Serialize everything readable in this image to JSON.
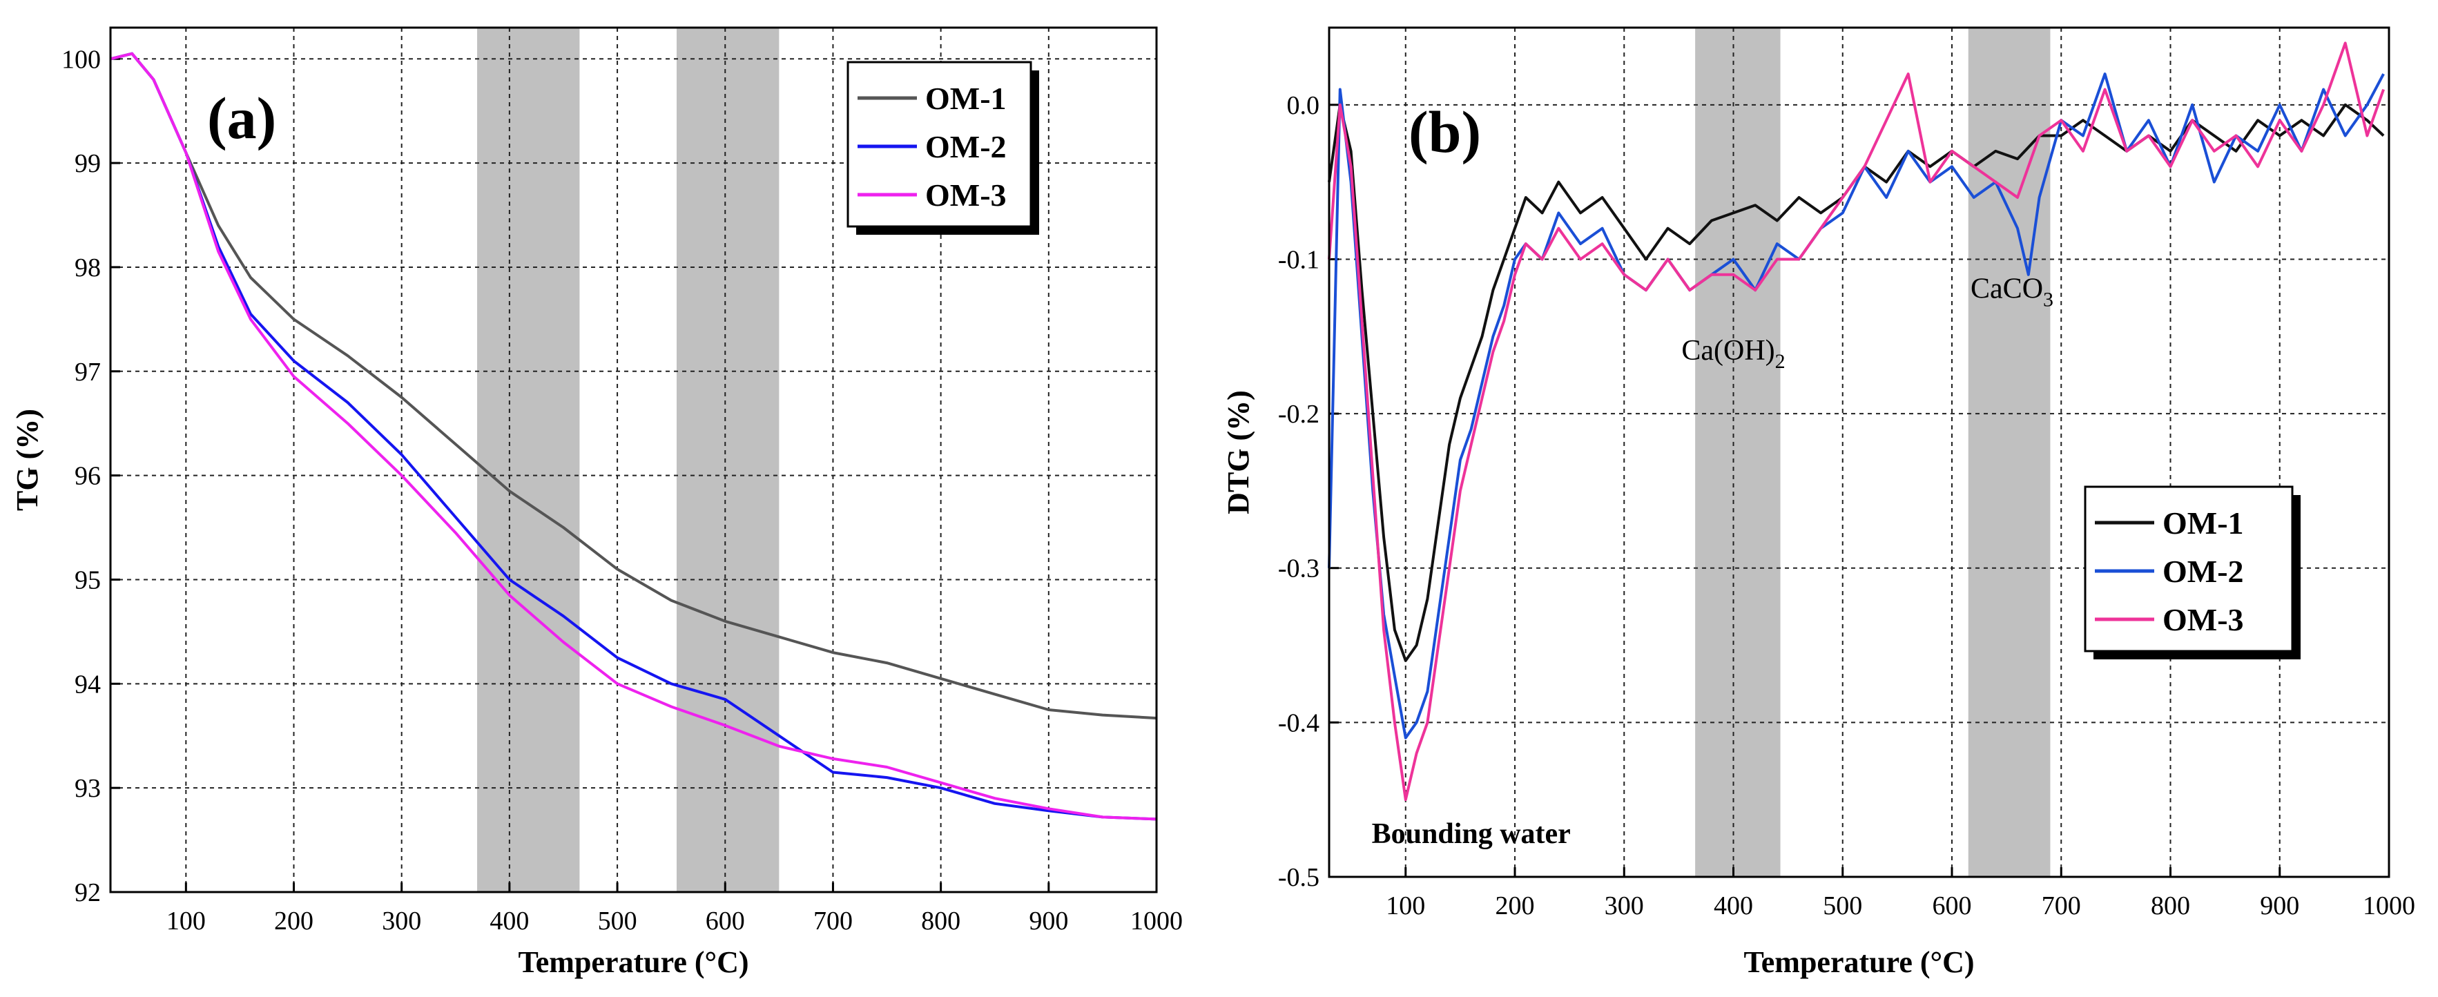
{
  "chart_data": [
    {
      "type": "line",
      "panel_label": "(a)",
      "xlabel": "Temperature (°C)",
      "ylabel": "TG (%)",
      "xlim": [
        30,
        1000
      ],
      "ylim": [
        92,
        100.3
      ],
      "xticks": [
        "100",
        "200",
        "300",
        "400",
        "500",
        "600",
        "700",
        "800",
        "900",
        "1000"
      ],
      "yticks": [
        "92",
        "93",
        "94",
        "95",
        "96",
        "97",
        "98",
        "99",
        "100"
      ],
      "grid": true,
      "shaded_ranges": [
        [
          370,
          465
        ],
        [
          555,
          650
        ]
      ],
      "legend_position": "top-right",
      "series": [
        {
          "name": "OM-1",
          "color": "#555555",
          "points": [
            [
              30,
              100
            ],
            [
              50,
              100.05
            ],
            [
              70,
              99.8
            ],
            [
              100,
              99.1
            ],
            [
              130,
              98.4
            ],
            [
              160,
              97.9
            ],
            [
              200,
              97.5
            ],
            [
              250,
              97.15
            ],
            [
              300,
              96.75
            ],
            [
              350,
              96.3
            ],
            [
              400,
              95.85
            ],
            [
              450,
              95.5
            ],
            [
              500,
              95.1
            ],
            [
              550,
              94.8
            ],
            [
              600,
              94.6
            ],
            [
              650,
              94.45
            ],
            [
              700,
              94.3
            ],
            [
              750,
              94.2
            ],
            [
              800,
              94.05
            ],
            [
              850,
              93.9
            ],
            [
              900,
              93.75
            ],
            [
              950,
              93.7
            ],
            [
              1000,
              93.67
            ]
          ]
        },
        {
          "name": "OM-2",
          "color": "#1515f0",
          "points": [
            [
              30,
              100
            ],
            [
              50,
              100.05
            ],
            [
              70,
              99.8
            ],
            [
              100,
              99.1
            ],
            [
              130,
              98.2
            ],
            [
              160,
              97.55
            ],
            [
              200,
              97.1
            ],
            [
              250,
              96.7
            ],
            [
              300,
              96.2
            ],
            [
              350,
              95.6
            ],
            [
              400,
              95.0
            ],
            [
              450,
              94.65
            ],
            [
              500,
              94.25
            ],
            [
              550,
              94.0
            ],
            [
              600,
              93.85
            ],
            [
              650,
              93.5
            ],
            [
              700,
              93.15
            ],
            [
              750,
              93.1
            ],
            [
              800,
              93.0
            ],
            [
              850,
              92.85
            ],
            [
              900,
              92.78
            ],
            [
              950,
              92.72
            ],
            [
              1000,
              92.7
            ]
          ]
        },
        {
          "name": "OM-3",
          "color": "#ee22ee",
          "points": [
            [
              30,
              100
            ],
            [
              50,
              100.05
            ],
            [
              70,
              99.8
            ],
            [
              100,
              99.1
            ],
            [
              130,
              98.15
            ],
            [
              160,
              97.5
            ],
            [
              200,
              96.95
            ],
            [
              250,
              96.5
            ],
            [
              300,
              96.0
            ],
            [
              350,
              95.45
            ],
            [
              400,
              94.85
            ],
            [
              450,
              94.4
            ],
            [
              500,
              94.0
            ],
            [
              550,
              93.78
            ],
            [
              600,
              93.6
            ],
            [
              650,
              93.4
            ],
            [
              700,
              93.28
            ],
            [
              750,
              93.2
            ],
            [
              800,
              93.05
            ],
            [
              850,
              92.9
            ],
            [
              900,
              92.8
            ],
            [
              950,
              92.72
            ],
            [
              1000,
              92.7
            ]
          ]
        }
      ]
    },
    {
      "type": "line",
      "panel_label": "(b)",
      "xlabel": "Temperature (°C)",
      "ylabel": "DTG (%)",
      "xlim": [
        30,
        1000
      ],
      "ylim": [
        -0.5,
        0.05
      ],
      "xticks": [
        "100",
        "200",
        "300",
        "400",
        "500",
        "600",
        "700",
        "800",
        "900",
        "1000"
      ],
      "yticks": [
        "0.0",
        "-0.1",
        "-0.2",
        "-0.3",
        "-0.4",
        "-0.5"
      ],
      "grid": true,
      "shaded_ranges": [
        [
          365,
          443
        ],
        [
          615,
          690
        ]
      ],
      "legend_position": "center-right",
      "annotations": [
        {
          "text": "Bounding water",
          "x": 160,
          "y": -0.478
        },
        {
          "text": "Ca(OH)",
          "sub": "2",
          "x": 400,
          "y": -0.165
        },
        {
          "text": "CaCO",
          "sub": "3",
          "x": 655,
          "y": -0.125
        }
      ],
      "series": [
        {
          "name": "OM-1",
          "color": "#111111",
          "points": [
            [
              30,
              -0.05
            ],
            [
              40,
              0.0
            ],
            [
              50,
              -0.03
            ],
            [
              60,
              -0.12
            ],
            [
              70,
              -0.2
            ],
            [
              80,
              -0.28
            ],
            [
              90,
              -0.34
            ],
            [
              100,
              -0.36
            ],
            [
              110,
              -0.35
            ],
            [
              120,
              -0.32
            ],
            [
              130,
              -0.27
            ],
            [
              140,
              -0.22
            ],
            [
              150,
              -0.19
            ],
            [
              160,
              -0.17
            ],
            [
              170,
              -0.15
            ],
            [
              180,
              -0.12
            ],
            [
              190,
              -0.1
            ],
            [
              200,
              -0.08
            ],
            [
              210,
              -0.06
            ],
            [
              225,
              -0.07
            ],
            [
              240,
              -0.05
            ],
            [
              260,
              -0.07
            ],
            [
              280,
              -0.06
            ],
            [
              300,
              -0.08
            ],
            [
              320,
              -0.1
            ],
            [
              340,
              -0.08
            ],
            [
              360,
              -0.09
            ],
            [
              380,
              -0.075
            ],
            [
              400,
              -0.07
            ],
            [
              420,
              -0.065
            ],
            [
              440,
              -0.075
            ],
            [
              460,
              -0.06
            ],
            [
              480,
              -0.07
            ],
            [
              500,
              -0.06
            ],
            [
              520,
              -0.04
            ],
            [
              540,
              -0.05
            ],
            [
              560,
              -0.03
            ],
            [
              580,
              -0.04
            ],
            [
              600,
              -0.03
            ],
            [
              620,
              -0.04
            ],
            [
              640,
              -0.03
            ],
            [
              660,
              -0.035
            ],
            [
              680,
              -0.02
            ],
            [
              700,
              -0.02
            ],
            [
              720,
              -0.01
            ],
            [
              740,
              -0.02
            ],
            [
              760,
              -0.03
            ],
            [
              780,
              -0.02
            ],
            [
              800,
              -0.03
            ],
            [
              820,
              -0.01
            ],
            [
              840,
              -0.02
            ],
            [
              860,
              -0.03
            ],
            [
              880,
              -0.01
            ],
            [
              900,
              -0.02
            ],
            [
              920,
              -0.01
            ],
            [
              940,
              -0.02
            ],
            [
              960,
              0.0
            ],
            [
              980,
              -0.01
            ],
            [
              995,
              -0.02
            ]
          ]
        },
        {
          "name": "OM-2",
          "color": "#1a4fd6",
          "points": [
            [
              30,
              -0.3
            ],
            [
              40,
              0.01
            ],
            [
              50,
              -0.05
            ],
            [
              60,
              -0.15
            ],
            [
              70,
              -0.25
            ],
            [
              80,
              -0.33
            ],
            [
              90,
              -0.37
            ],
            [
              100,
              -0.41
            ],
            [
              110,
              -0.4
            ],
            [
              120,
              -0.38
            ],
            [
              130,
              -0.33
            ],
            [
              140,
              -0.28
            ],
            [
              150,
              -0.23
            ],
            [
              160,
              -0.21
            ],
            [
              170,
              -0.18
            ],
            [
              180,
              -0.15
            ],
            [
              190,
              -0.13
            ],
            [
              200,
              -0.1
            ],
            [
              210,
              -0.09
            ],
            [
              225,
              -0.1
            ],
            [
              240,
              -0.07
            ],
            [
              260,
              -0.09
            ],
            [
              280,
              -0.08
            ],
            [
              300,
              -0.11
            ],
            [
              320,
              -0.12
            ],
            [
              340,
              -0.1
            ],
            [
              360,
              -0.12
            ],
            [
              380,
              -0.11
            ],
            [
              400,
              -0.1
            ],
            [
              420,
              -0.12
            ],
            [
              440,
              -0.09
            ],
            [
              460,
              -0.1
            ],
            [
              480,
              -0.08
            ],
            [
              500,
              -0.07
            ],
            [
              520,
              -0.04
            ],
            [
              540,
              -0.06
            ],
            [
              560,
              -0.03
            ],
            [
              580,
              -0.05
            ],
            [
              600,
              -0.04
            ],
            [
              620,
              -0.06
            ],
            [
              640,
              -0.05
            ],
            [
              660,
              -0.08
            ],
            [
              670,
              -0.11
            ],
            [
              680,
              -0.06
            ],
            [
              700,
              -0.01
            ],
            [
              720,
              -0.02
            ],
            [
              740,
              0.02
            ],
            [
              760,
              -0.03
            ],
            [
              780,
              -0.01
            ],
            [
              800,
              -0.04
            ],
            [
              820,
              0.0
            ],
            [
              840,
              -0.05
            ],
            [
              860,
              -0.02
            ],
            [
              880,
              -0.03
            ],
            [
              900,
              0.0
            ],
            [
              920,
              -0.03
            ],
            [
              940,
              0.01
            ],
            [
              960,
              -0.02
            ],
            [
              980,
              0.0
            ],
            [
              995,
              0.02
            ]
          ]
        },
        {
          "name": "OM-3",
          "color": "#ee3399",
          "points": [
            [
              30,
              -0.1
            ],
            [
              40,
              0.0
            ],
            [
              50,
              -0.04
            ],
            [
              60,
              -0.14
            ],
            [
              70,
              -0.24
            ],
            [
              80,
              -0.34
            ],
            [
              90,
              -0.4
            ],
            [
              100,
              -0.45
            ],
            [
              110,
              -0.42
            ],
            [
              120,
              -0.4
            ],
            [
              130,
              -0.35
            ],
            [
              140,
              -0.3
            ],
            [
              150,
              -0.25
            ],
            [
              160,
              -0.22
            ],
            [
              170,
              -0.19
            ],
            [
              180,
              -0.16
            ],
            [
              190,
              -0.14
            ],
            [
              200,
              -0.11
            ],
            [
              210,
              -0.09
            ],
            [
              225,
              -0.1
            ],
            [
              240,
              -0.08
            ],
            [
              260,
              -0.1
            ],
            [
              280,
              -0.09
            ],
            [
              300,
              -0.11
            ],
            [
              320,
              -0.12
            ],
            [
              340,
              -0.1
            ],
            [
              360,
              -0.12
            ],
            [
              380,
              -0.11
            ],
            [
              400,
              -0.11
            ],
            [
              420,
              -0.12
            ],
            [
              440,
              -0.1
            ],
            [
              460,
              -0.1
            ],
            [
              480,
              -0.08
            ],
            [
              500,
              -0.06
            ],
            [
              520,
              -0.04
            ],
            [
              540,
              -0.01
            ],
            [
              560,
              0.02
            ],
            [
              580,
              -0.05
            ],
            [
              600,
              -0.03
            ],
            [
              620,
              -0.04
            ],
            [
              640,
              -0.05
            ],
            [
              660,
              -0.06
            ],
            [
              680,
              -0.02
            ],
            [
              700,
              -0.01
            ],
            [
              720,
              -0.03
            ],
            [
              740,
              0.01
            ],
            [
              760,
              -0.03
            ],
            [
              780,
              -0.02
            ],
            [
              800,
              -0.04
            ],
            [
              820,
              -0.01
            ],
            [
              840,
              -0.03
            ],
            [
              860,
              -0.02
            ],
            [
              880,
              -0.04
            ],
            [
              900,
              -0.01
            ],
            [
              920,
              -0.03
            ],
            [
              940,
              0.0
            ],
            [
              960,
              0.04
            ],
            [
              980,
              -0.02
            ],
            [
              995,
              0.01
            ]
          ]
        }
      ]
    }
  ]
}
